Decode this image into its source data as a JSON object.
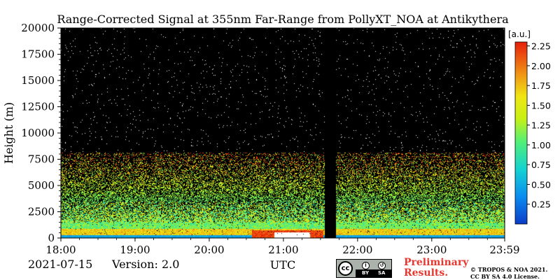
{
  "chart_data": {
    "type": "heatmap",
    "title": "Range-Corrected Signal at 355nm Far-Range from PollyXT_NOA at Antikythera",
    "xlabel": "",
    "ylabel": "Height (m)",
    "x_ticks": [
      "18:00",
      "19:00",
      "20:00",
      "21:00",
      "22:00",
      "23:00",
      "23:59"
    ],
    "x_range": [
      "18:00",
      "23:59"
    ],
    "y_ticks": [
      0,
      2500,
      5000,
      7500,
      10000,
      12500,
      15000,
      17500,
      20000
    ],
    "ylim": [
      0,
      20000
    ],
    "colorbar": {
      "label": "[a.u.]",
      "range": [
        0,
        2.3
      ],
      "ticks": [
        0.25,
        0.5,
        0.75,
        1.0,
        1.25,
        1.5,
        1.75,
        2.0,
        2.25
      ],
      "tick_labels": [
        "0.25",
        "0.50",
        "0.75",
        "1.00",
        "1.25",
        "1.50",
        "1.75",
        "2.00",
        "2.25"
      ],
      "colormap": "jet"
    },
    "data_gap": [
      "21:33",
      "21:42"
    ],
    "background_color": "#000000"
  },
  "footer": {
    "date": "2021-07-15",
    "version": "Version: 2.0",
    "x_unit": "UTC",
    "license_badge": {
      "by": "BY",
      "sa": "SA",
      "icon": "cc-icon"
    },
    "preliminary": [
      "Preliminary",
      "Results."
    ],
    "copyright": [
      "© TROPOS & NOA 2021.",
      "CC BY SA 4.0 License."
    ]
  }
}
